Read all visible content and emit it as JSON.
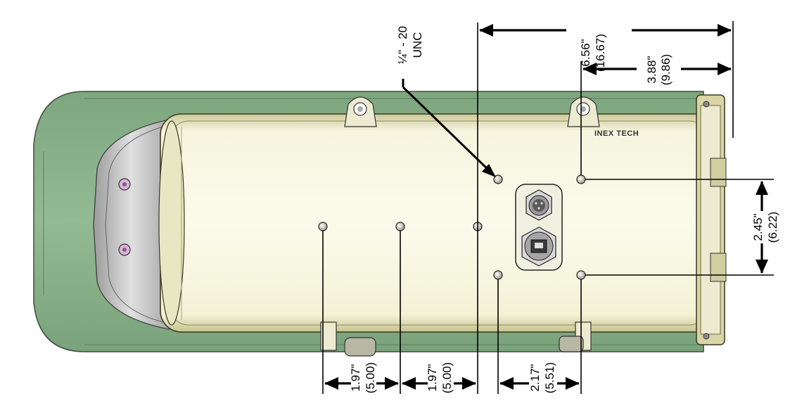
{
  "brand": {
    "logo_text": "INEX TECH"
  },
  "thread_callout": {
    "line1": "¼\" - 20",
    "line2": "UNC"
  },
  "dimensions": {
    "overall_top": {
      "inch": "6.56\"",
      "cm": "(16.67)"
    },
    "upper_right": {
      "inch": "3.88\"",
      "cm": "(9.86)"
    },
    "right_vertical": {
      "inch": "2.45\"",
      "cm": "(6.22)"
    },
    "bottom_left": {
      "inch": "1.97\"",
      "cm": "(5.00)"
    },
    "bottom_middle": {
      "inch": "1.97\"",
      "cm": "(5.00)"
    },
    "bottom_right": {
      "inch": "2.17\"",
      "cm": "(5.51)"
    }
  },
  "colors": {
    "shroud": "#8fb68f",
    "shroud_dark": "#6f9a72",
    "body": "#f4f4dc",
    "body_shade": "#d7d6a8",
    "front_ring": "#c8c8c8",
    "bracket": "#e9e6c7",
    "dimension": "#000000"
  }
}
